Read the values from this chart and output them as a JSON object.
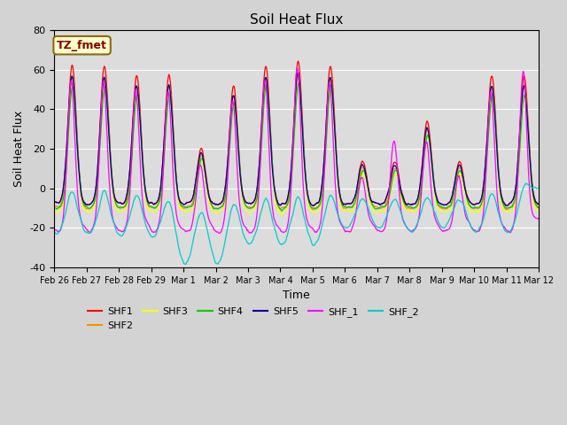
{
  "title": "Soil Heat Flux",
  "xlabel": "Time",
  "ylabel": "Soil Heat Flux",
  "ylim": [
    -40,
    80
  ],
  "annotation_text": "TZ_fmet",
  "annotation_color": "#8B0000",
  "annotation_bg": "#FFFFCC",
  "series_colors": {
    "SHF1": "#FF0000",
    "SHF2": "#FF8C00",
    "SHF3": "#FFFF00",
    "SHF4": "#00CC00",
    "SHF5": "#000099",
    "SHF_1": "#FF00FF",
    "SHF_2": "#00CCCC"
  },
  "xtick_labels": [
    "Feb 26",
    "Feb 27",
    "Feb 28",
    "Feb 29",
    "Mar 1",
    "Mar 2",
    "Mar 3",
    "Mar 4",
    "Mar 5",
    "Mar 6",
    "Mar 7",
    "Mar 8",
    "Mar 9",
    "Mar 10",
    "Mar 11",
    "Mar 12"
  ],
  "ytick_labels": [
    -40,
    -20,
    0,
    20,
    40,
    60,
    80
  ],
  "figsize": [
    6.4,
    4.8
  ],
  "dpi": 100,
  "bg_color": "#DCDCDC",
  "fig_bg": "#D3D3D3"
}
